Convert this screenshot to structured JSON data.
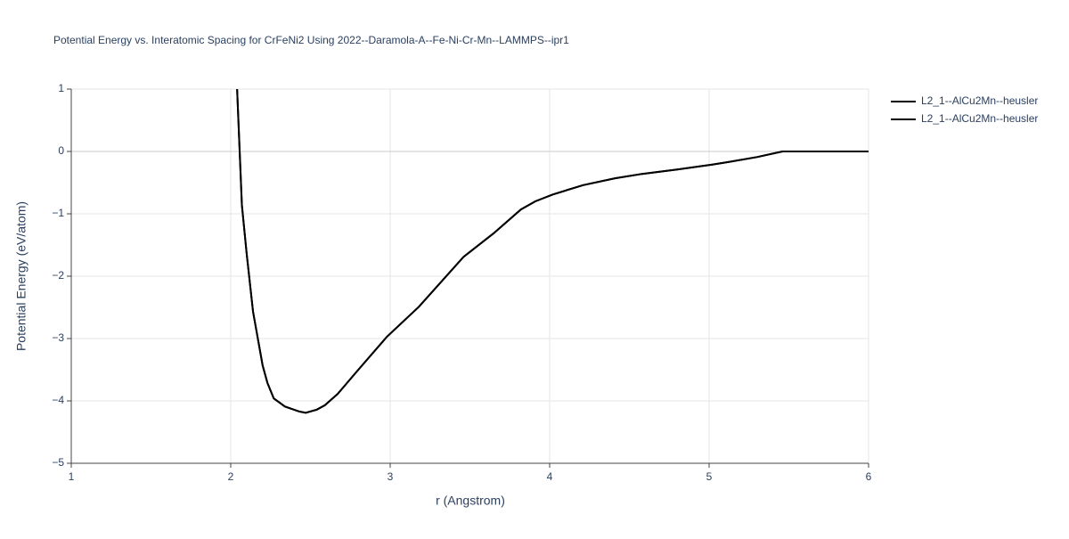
{
  "chart_data": {
    "type": "line",
    "title": "Potential Energy vs. Interatomic Spacing for CrFeNi2 Using 2022--Daramola-A--Fe-Ni-Cr-Mn--LAMMPS--ipr1",
    "x_label": "r (Angstrom)",
    "y_label": "Potential Energy (eV/atom)",
    "x": [
      2.04,
      2.07,
      2.1,
      2.14,
      2.17,
      2.2,
      2.23,
      2.27,
      2.34,
      2.43,
      2.47,
      2.54,
      2.59,
      2.67,
      2.79,
      2.98,
      3.18,
      3.46,
      3.65,
      3.82,
      3.91,
      4.02,
      4.21,
      4.41,
      4.58,
      4.8,
      5.02,
      5.12,
      5.3,
      5.46,
      5.58,
      6.0
    ],
    "series": [
      {
        "name": "L2_1--AlCu2Mn--heusler",
        "color": "#000000",
        "values": [
          1.0,
          -0.86,
          -1.64,
          -2.57,
          -3.0,
          -3.43,
          -3.71,
          -3.96,
          -4.09,
          -4.17,
          -4.19,
          -4.14,
          -4.07,
          -3.89,
          -3.53,
          -2.97,
          -2.49,
          -1.69,
          -1.31,
          -0.93,
          -0.8,
          -0.69,
          -0.54,
          -0.43,
          -0.36,
          -0.29,
          -0.21,
          -0.17,
          -0.09,
          0,
          0,
          0
        ]
      },
      {
        "name": "L2_1--AlCu2Mn--heusler",
        "color": "#000000",
        "values": [
          1.0,
          -0.86,
          -1.64,
          -2.57,
          -3.0,
          -3.43,
          -3.71,
          -3.96,
          -4.09,
          -4.17,
          -4.19,
          -4.14,
          -4.07,
          -3.89,
          -3.53,
          -2.97,
          -2.49,
          -1.69,
          -1.31,
          -0.93,
          -0.8,
          -0.69,
          -0.54,
          -0.43,
          -0.36,
          -0.29,
          -0.21,
          -0.17,
          -0.09,
          0,
          0,
          0
        ]
      }
    ],
    "xlim": [
      1,
      6
    ],
    "xticks": [
      1,
      2,
      3,
      4,
      5,
      6
    ],
    "ylim": [
      -5,
      1
    ],
    "yticks": [
      {
        "value": -5,
        "label": "−5"
      },
      {
        "value": -4,
        "label": "−4"
      },
      {
        "value": -3,
        "label": "−3"
      },
      {
        "value": -2,
        "label": "−2"
      },
      {
        "value": -1,
        "label": "−1"
      },
      0,
      1
    ],
    "grid": true,
    "legend": "right"
  }
}
